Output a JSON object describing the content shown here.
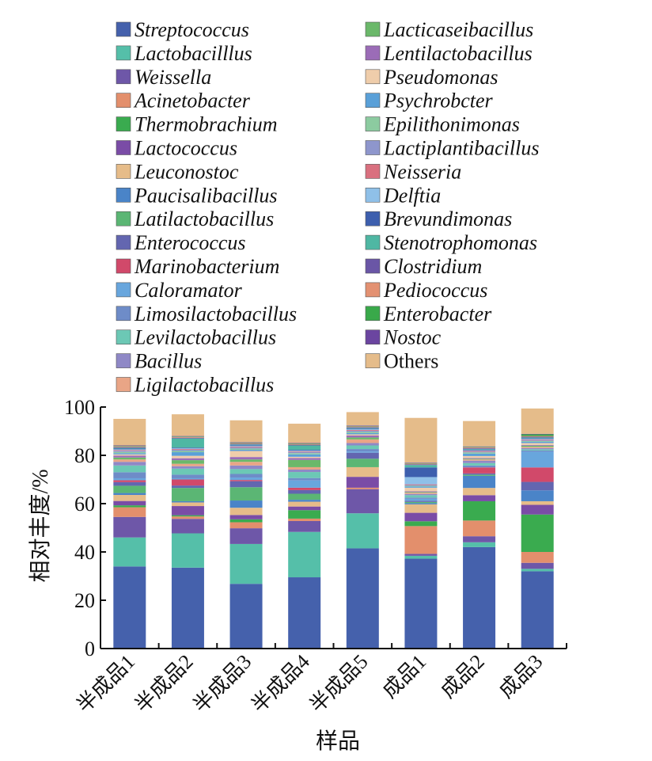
{
  "chart_data": {
    "type": "bar",
    "stacked": true,
    "xlabel": "样品",
    "ylabel": "相对丰度/%",
    "ylim": [
      0,
      100
    ],
    "yticks": [
      0,
      20,
      40,
      60,
      80,
      100
    ],
    "grid": false,
    "legend_position": "top",
    "categories": [
      "半成品1",
      "半成品2",
      "半成品3",
      "半成品4",
      "半成品5",
      "成品1",
      "成品2",
      "成品3"
    ],
    "series": [
      {
        "name": "Streptococcus",
        "color": "#4561AC",
        "values": [
          34.0,
          33.5,
          26.8,
          29.5,
          41.5,
          37.2,
          42.0,
          32.0
        ]
      },
      {
        "name": "Lactobacilllus",
        "color": "#55BFA9",
        "values": [
          12.0,
          14.2,
          16.5,
          18.8,
          14.5,
          1.2,
          2.0,
          1.0
        ]
      },
      {
        "name": "Weissella",
        "color": "#6E57A8",
        "values": [
          8.5,
          6.0,
          6.5,
          4.5,
          10.0,
          0.8,
          2.5,
          2.5
        ]
      },
      {
        "name": "Acinetobacter",
        "color": "#E38F6C",
        "values": [
          4.0,
          1.0,
          2.5,
          1.0,
          0.6,
          11.5,
          6.5,
          4.5
        ]
      },
      {
        "name": "Thermobrachium",
        "color": "#3AAB4F",
        "values": [
          0.8,
          0.5,
          1.2,
          3.5,
          0.0,
          2.0,
          8.0,
          15.5
        ]
      },
      {
        "name": "Lactococcus",
        "color": "#7A4CA6",
        "values": [
          1.8,
          3.8,
          1.8,
          1.5,
          4.5,
          3.5,
          2.5,
          4.0
        ]
      },
      {
        "name": "Leuconostoc",
        "color": "#E6BC89",
        "values": [
          2.5,
          1.5,
          3.0,
          2.0,
          4.0,
          3.5,
          3.0,
          1.5
        ]
      },
      {
        "name": "Paucisalibacillus",
        "color": "#4A84C8",
        "values": [
          0.8,
          0.5,
          3.0,
          0.8,
          0.0,
          0.5,
          5.0,
          4.5
        ]
      },
      {
        "name": "Latilactobacillus",
        "color": "#5BB674",
        "values": [
          3.0,
          5.5,
          5.5,
          2.5,
          3.5,
          0.5,
          0.5,
          0.0
        ]
      },
      {
        "name": "Enterococcus",
        "color": "#6366B0",
        "values": [
          1.5,
          1.0,
          2.5,
          1.5,
          2.5,
          0.5,
          0.5,
          3.5
        ]
      },
      {
        "name": "Marinobacterium",
        "color": "#D1496A",
        "values": [
          0.8,
          2.5,
          0.5,
          1.0,
          0.0,
          0.0,
          2.5,
          6.0
        ]
      },
      {
        "name": "Caloramator",
        "color": "#68A6DD",
        "values": [
          0.8,
          0.5,
          1.0,
          3.0,
          0.5,
          0.8,
          0.0,
          6.5
        ]
      },
      {
        "name": "Limosilactobacillus",
        "color": "#6E8CC8",
        "values": [
          2.5,
          1.5,
          1.5,
          1.0,
          1.0,
          0.5,
          0.8,
          0.5
        ]
      },
      {
        "name": "Levilactobacillus",
        "color": "#6CC8B5",
        "values": [
          2.8,
          2.5,
          2.0,
          2.5,
          1.5,
          1.0,
          1.0,
          0.5
        ]
      },
      {
        "name": "Bacillus",
        "color": "#8F88C6",
        "values": [
          1.5,
          1.0,
          1.5,
          1.0,
          1.0,
          0.5,
          1.0,
          0.5
        ]
      },
      {
        "name": "Ligilactobacillus",
        "color": "#E9A586",
        "values": [
          1.0,
          1.0,
          1.5,
          1.0,
          1.5,
          0.5,
          0.5,
          0.5
        ]
      },
      {
        "name": "Lacticaseibacillus",
        "color": "#6BB86A",
        "values": [
          0.8,
          1.5,
          1.0,
          3.0,
          0.8,
          0.3,
          0.3,
          0.5
        ]
      },
      {
        "name": "Lentilactobacillus",
        "color": "#9B6CB7",
        "values": [
          0.8,
          0.8,
          1.0,
          0.8,
          0.8,
          0.3,
          0.3,
          0.3
        ]
      },
      {
        "name": "Pseudomonas",
        "color": "#EFCDAB",
        "values": [
          0.5,
          1.0,
          2.5,
          0.5,
          0.5,
          1.5,
          0.8,
          0.8
        ]
      },
      {
        "name": "Psychrobcter",
        "color": "#5AA0D8",
        "values": [
          0.5,
          1.5,
          0.5,
          1.0,
          0.5,
          0.5,
          1.0,
          0.5
        ]
      },
      {
        "name": "Epilithonimonas",
        "color": "#8CCBA0",
        "values": [
          0.5,
          0.5,
          0.5,
          0.5,
          0.5,
          0.3,
          0.5,
          0.3
        ]
      },
      {
        "name": "Lactiplantibacillus",
        "color": "#8E96CC",
        "values": [
          0.5,
          0.5,
          0.5,
          0.5,
          0.5,
          0.3,
          0.3,
          0.3
        ]
      },
      {
        "name": "Neisseria",
        "color": "#D9707F",
        "values": [
          0.3,
          0.3,
          0.3,
          0.3,
          0.3,
          0.3,
          0.3,
          0.3
        ]
      },
      {
        "name": "Delftia",
        "color": "#8FC0E8",
        "values": [
          0.3,
          0.3,
          0.3,
          0.3,
          0.3,
          3.0,
          0.3,
          0.3
        ]
      },
      {
        "name": "Brevundimonas",
        "color": "#3D5FAE",
        "values": [
          0.3,
          0.3,
          0.3,
          0.3,
          0.3,
          4.0,
          0.3,
          0.3
        ]
      },
      {
        "name": "Stenotrophomonas",
        "color": "#4FB7A3",
        "values": [
          0.3,
          3.8,
          0.3,
          1.8,
          0.3,
          1.0,
          0.3,
          0.3
        ]
      },
      {
        "name": "Clostridium",
        "color": "#6A56A6",
        "values": [
          0.3,
          0.3,
          0.3,
          0.3,
          0.3,
          0.3,
          0.3,
          0.3
        ]
      },
      {
        "name": "Pediococcus",
        "color": "#E39172",
        "values": [
          0.3,
          0.3,
          0.3,
          0.3,
          0.3,
          0.3,
          0.3,
          0.3
        ]
      },
      {
        "name": "Enterobacter",
        "color": "#39A94A",
        "values": [
          0.2,
          0.2,
          0.2,
          0.2,
          0.2,
          0.2,
          0.2,
          0.7
        ]
      },
      {
        "name": "Nostoc",
        "color": "#6B45A0",
        "values": [
          0.2,
          0.2,
          0.2,
          0.2,
          0.2,
          0.2,
          0.2,
          0.2
        ]
      },
      {
        "name": "Others",
        "color": "#E5BC8A",
        "values": [
          11.0,
          9.0,
          9.0,
          8.0,
          5.5,
          18.5,
          10.5,
          10.5
        ]
      }
    ]
  }
}
